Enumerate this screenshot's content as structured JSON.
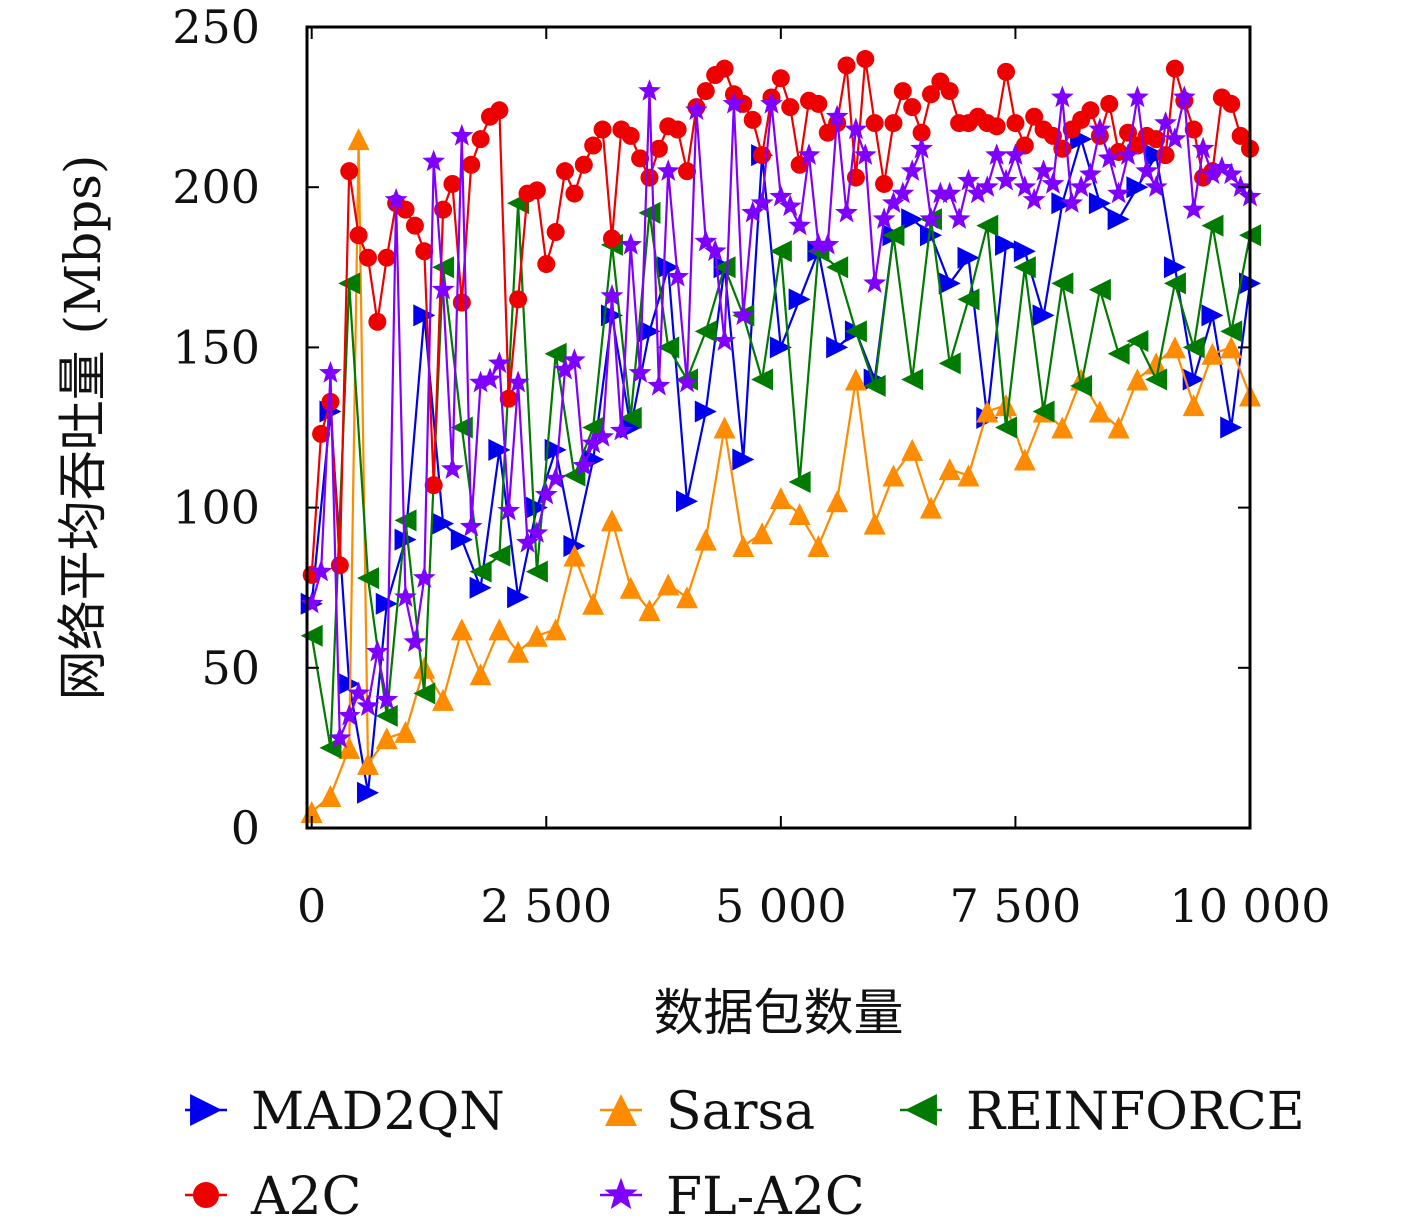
{
  "chart_data": {
    "type": "line",
    "xlabel": "数据包数量",
    "ylabel": "网络平均吞吐量 (Mbps)",
    "xlim": [
      -50,
      10000
    ],
    "ylim": [
      0,
      250
    ],
    "x_ticks": [
      0,
      2500,
      5000,
      7500,
      10000
    ],
    "x_tick_labels": [
      "0",
      "2 500",
      "5 000",
      "7 500",
      "10 000"
    ],
    "y_ticks": [
      0,
      50,
      100,
      150,
      200,
      250
    ],
    "y_tick_labels": [
      "0",
      "50",
      "100",
      "150",
      "200",
      "250"
    ],
    "legend_position": "bottom",
    "series": [
      {
        "name": "MAD2QN",
        "color": "#0000ee",
        "marker": "triangle-right",
        "x": [
          0,
          200,
          400,
          600,
          800,
          1000,
          1200,
          1400,
          1600,
          1800,
          2000,
          2200,
          2400,
          2600,
          2800,
          3000,
          3200,
          3400,
          3600,
          3800,
          4000,
          4200,
          4400,
          4600,
          4800,
          5000,
          5200,
          5400,
          5600,
          5800,
          6000,
          6200,
          6400,
          6600,
          6800,
          7000,
          7200,
          7400,
          7600,
          7800,
          8000,
          8200,
          8400,
          8600,
          8800,
          9000,
          9200,
          9400,
          9600,
          9800,
          10000
        ],
        "values": [
          70,
          130,
          45,
          11,
          70,
          90,
          160,
          95,
          90,
          75,
          118,
          72,
          100,
          118,
          88,
          115,
          160,
          125,
          155,
          175,
          102,
          130,
          175,
          115,
          210,
          150,
          165,
          180,
          150,
          155,
          140,
          185,
          190,
          185,
          170,
          178,
          128,
          182,
          180,
          160,
          195,
          215,
          195,
          190,
          200,
          210,
          175,
          140,
          160,
          125,
          170
        ]
      },
      {
        "name": "Sarsa",
        "color": "#ff8c00",
        "marker": "triangle-up",
        "x": [
          0,
          200,
          400,
          500,
          600,
          800,
          1000,
          1200,
          1400,
          1600,
          1800,
          2000,
          2200,
          2400,
          2600,
          2800,
          3000,
          3200,
          3400,
          3600,
          3800,
          4000,
          4200,
          4400,
          4600,
          4800,
          5000,
          5200,
          5400,
          5600,
          5800,
          6000,
          6200,
          6400,
          6600,
          6800,
          7000,
          7200,
          7400,
          7600,
          7800,
          8000,
          8200,
          8400,
          8600,
          8800,
          9000,
          9200,
          9400,
          9600,
          9800,
          10000
        ],
        "values": [
          5,
          10,
          25,
          215,
          20,
          28,
          30,
          50,
          40,
          62,
          48,
          62,
          55,
          60,
          62,
          85,
          70,
          96,
          75,
          68,
          76,
          72,
          90,
          125,
          88,
          92,
          103,
          98,
          88,
          102,
          140,
          95,
          110,
          118,
          100,
          112,
          110,
          130,
          132,
          115,
          130,
          125,
          140,
          130,
          125,
          140,
          145,
          150,
          132,
          148,
          150,
          135
        ]
      },
      {
        "name": "REINFORCE",
        "color": "#007a00",
        "marker": "triangle-left",
        "x": [
          0,
          200,
          400,
          600,
          800,
          1000,
          1200,
          1400,
          1600,
          1800,
          2000,
          2200,
          2400,
          2600,
          2800,
          3000,
          3200,
          3400,
          3600,
          3800,
          4000,
          4200,
          4400,
          4600,
          4800,
          5000,
          5200,
          5400,
          5600,
          5800,
          6000,
          6200,
          6400,
          6600,
          6800,
          7000,
          7200,
          7400,
          7600,
          7800,
          8000,
          8200,
          8400,
          8600,
          8800,
          9000,
          9200,
          9400,
          9600,
          9800,
          10000
        ],
        "values": [
          60,
          25,
          170,
          78,
          35,
          96,
          42,
          175,
          125,
          80,
          85,
          195,
          80,
          148,
          110,
          125,
          182,
          128,
          192,
          150,
          140,
          155,
          175,
          160,
          140,
          180,
          108,
          180,
          175,
          155,
          138,
          185,
          140,
          190,
          145,
          165,
          188,
          125,
          175,
          130,
          170,
          138,
          168,
          148,
          152,
          140,
          170,
          150,
          188,
          155,
          185
        ]
      },
      {
        "name": "A2C",
        "color": "#ee0000",
        "marker": "circle",
        "x": [
          0,
          100,
          200,
          300,
          400,
          500,
          600,
          700,
          800,
          900,
          1000,
          1100,
          1200,
          1300,
          1400,
          1500,
          1600,
          1700,
          1800,
          1900,
          2000,
          2100,
          2200,
          2300,
          2400,
          2500,
          2600,
          2700,
          2800,
          2900,
          3000,
          3100,
          3200,
          3300,
          3400,
          3500,
          3600,
          3700,
          3800,
          3900,
          4000,
          4100,
          4200,
          4300,
          4400,
          4500,
          4600,
          4700,
          4800,
          4900,
          5000,
          5100,
          5200,
          5300,
          5400,
          5500,
          5600,
          5700,
          5800,
          5900,
          6000,
          6100,
          6200,
          6300,
          6400,
          6500,
          6600,
          6700,
          6800,
          6900,
          7000,
          7100,
          7200,
          7300,
          7400,
          7500,
          7600,
          7700,
          7800,
          7900,
          8000,
          8100,
          8200,
          8300,
          8400,
          8500,
          8600,
          8700,
          8800,
          8900,
          9000,
          9100,
          9200,
          9300,
          9400,
          9500,
          9600,
          9700,
          9800,
          9900,
          10000
        ],
        "values": [
          79,
          123,
          133,
          82,
          205,
          185,
          178,
          158,
          178,
          195,
          193,
          188,
          180,
          107,
          193,
          201,
          164,
          207,
          215,
          222,
          224,
          134,
          165,
          198,
          199,
          176,
          186,
          205,
          198,
          207,
          213,
          218,
          184,
          218,
          216,
          209,
          203,
          212,
          219,
          218,
          205,
          225,
          230,
          235,
          237,
          229,
          226,
          221,
          210,
          228,
          234,
          225,
          207,
          227,
          226,
          217,
          220,
          238,
          203,
          240,
          220,
          201,
          220,
          230,
          225,
          217,
          229,
          233,
          230,
          220,
          220,
          222,
          220,
          219,
          236,
          220,
          213,
          222,
          218,
          216,
          212,
          218,
          221,
          224,
          216,
          226,
          211,
          217,
          213,
          216,
          215,
          210,
          237,
          227,
          218,
          203,
          205,
          228,
          226,
          216,
          212
        ]
      },
      {
        "name": "FL-A2C",
        "color": "#8000ff",
        "marker": "star",
        "x": [
          0,
          100,
          200,
          300,
          400,
          500,
          600,
          700,
          800,
          900,
          1000,
          1100,
          1200,
          1300,
          1400,
          1500,
          1600,
          1700,
          1800,
          1900,
          2000,
          2100,
          2200,
          2300,
          2400,
          2500,
          2600,
          2700,
          2800,
          2900,
          3000,
          3100,
          3200,
          3300,
          3400,
          3500,
          3600,
          3700,
          3800,
          3900,
          4000,
          4100,
          4200,
          4300,
          4400,
          4500,
          4600,
          4700,
          4800,
          4900,
          5000,
          5100,
          5200,
          5300,
          5400,
          5500,
          5600,
          5700,
          5800,
          5900,
          6000,
          6100,
          6200,
          6300,
          6400,
          6500,
          6600,
          6700,
          6800,
          6900,
          7000,
          7100,
          7200,
          7300,
          7400,
          7500,
          7600,
          7700,
          7800,
          7900,
          8000,
          8100,
          8200,
          8300,
          8400,
          8500,
          8600,
          8700,
          8800,
          8900,
          9000,
          9100,
          9200,
          9300,
          9400,
          9500,
          9600,
          9700,
          9800,
          9900,
          10000
        ],
        "values": [
          70,
          80,
          142,
          28,
          35,
          42,
          38,
          55,
          40,
          196,
          72,
          58,
          78,
          208,
          168,
          112,
          216,
          94,
          139,
          140,
          145,
          99,
          139,
          89,
          92,
          104,
          109,
          143,
          146,
          113,
          120,
          122,
          166,
          124,
          182,
          142,
          230,
          138,
          205,
          172,
          139,
          224,
          183,
          180,
          152,
          226,
          160,
          192,
          195,
          226,
          197,
          194,
          188,
          210,
          182,
          182,
          222,
          192,
          218,
          210,
          170,
          190,
          195,
          198,
          205,
          212,
          190,
          198,
          198,
          190,
          202,
          198,
          200,
          210,
          202,
          210,
          200,
          196,
          205,
          201,
          228,
          195,
          200,
          204,
          218,
          209,
          198,
          210,
          228,
          205,
          200,
          220,
          215,
          228,
          193,
          212,
          204,
          206,
          204,
          200,
          197
        ]
      }
    ]
  }
}
